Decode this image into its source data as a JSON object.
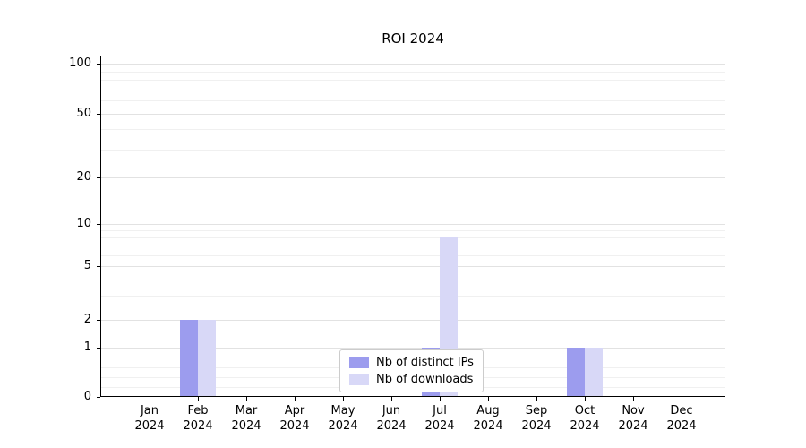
{
  "chart_data": {
    "type": "bar",
    "title": "ROI 2024",
    "x_year": "2024",
    "categories": [
      "Jan",
      "Feb",
      "Mar",
      "Apr",
      "May",
      "Jun",
      "Jul",
      "Aug",
      "Sep",
      "Oct",
      "Nov",
      "Dec"
    ],
    "series": [
      {
        "name": "Nb of distinct IPs",
        "color": "#9c9cee",
        "values": [
          0,
          2,
          0,
          0,
          0,
          0,
          1,
          0,
          0,
          1,
          0,
          0
        ]
      },
      {
        "name": "Nb of downloads",
        "color": "#d8d8f7",
        "values": [
          0,
          2,
          0,
          0,
          0,
          0,
          8,
          0,
          0,
          1,
          0,
          0
        ]
      }
    ],
    "y_ticks": [
      0,
      1,
      2,
      5,
      10,
      20,
      50,
      100
    ],
    "y_scale": "symlog",
    "ylim": [
      0,
      120
    ],
    "grid": true,
    "legend_position": "lower center",
    "colors": {
      "background": "#ffffff",
      "axis": "#000000",
      "grid_major": "#e2e2e2",
      "grid_minor": "#f0f0f0"
    }
  }
}
